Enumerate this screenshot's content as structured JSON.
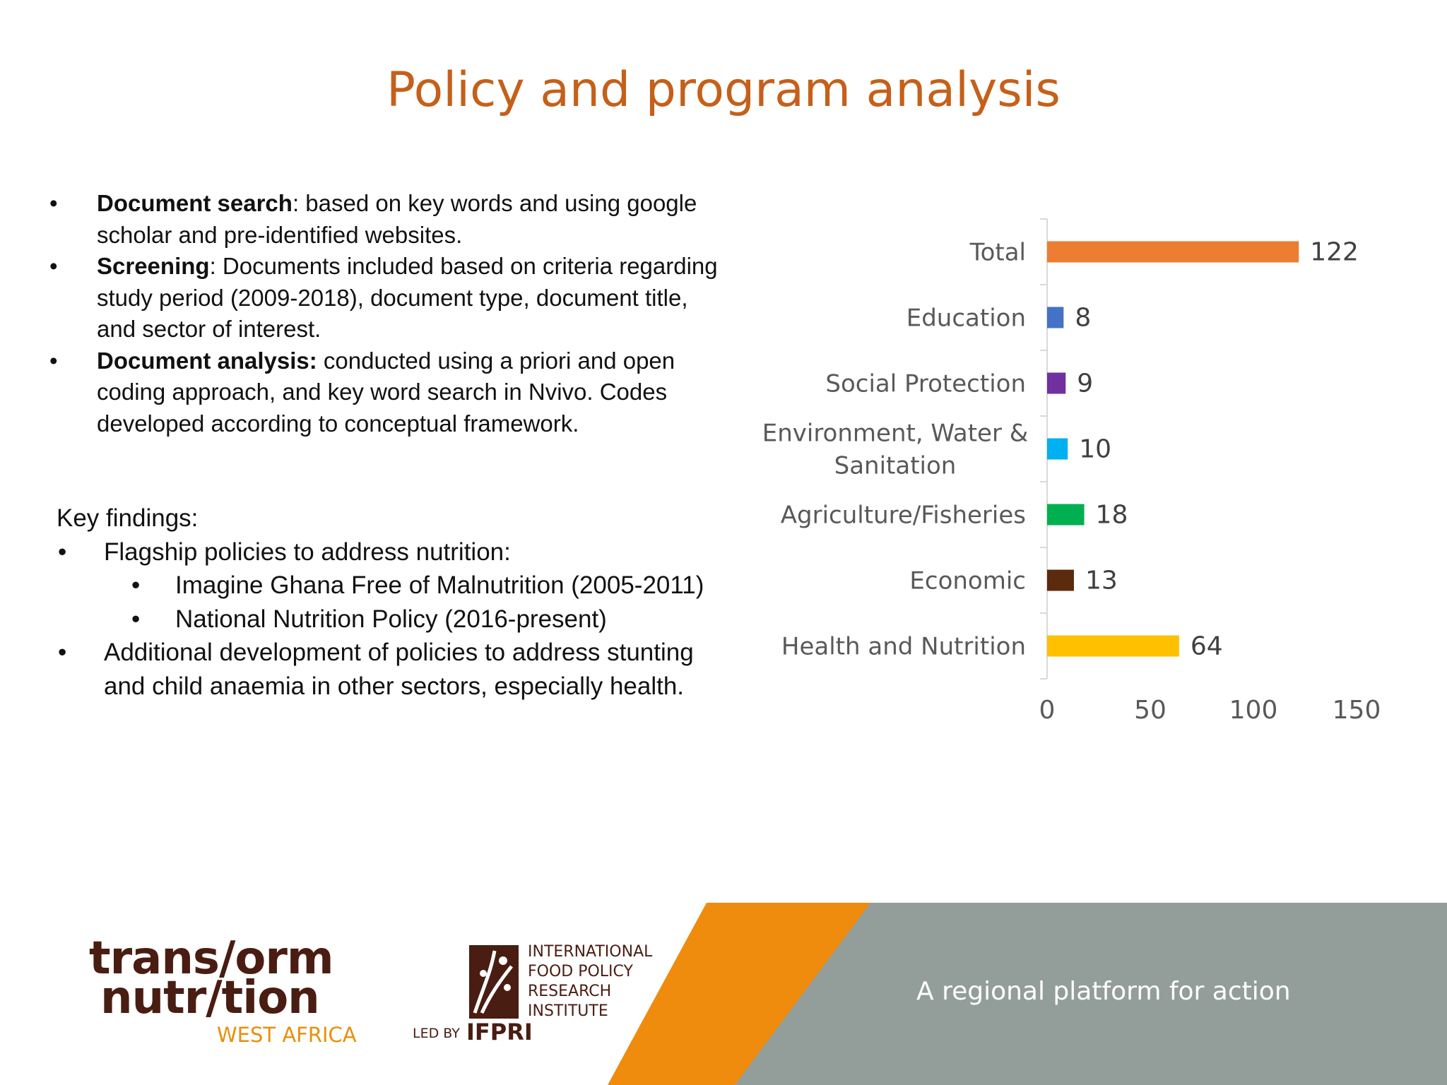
{
  "slide": {
    "title": "Policy and program analysis"
  },
  "methods": [
    {
      "bullet": "•",
      "label": "Document search",
      "text": ": based on key words and using google scholar and pre-identified websites."
    },
    {
      "bullet": "•",
      "label": "Screening",
      "text": ": Documents included based on criteria regarding study period (2009-2018), document type, document title, and sector of interest."
    },
    {
      "bullet": "•",
      "label": "Document analysis:",
      "text": " conducted using a priori and open coding approach, and key word search in Nvivo. Codes developed according to conceptual framework."
    }
  ],
  "findings": {
    "heading": "Key findings:",
    "items": [
      {
        "bullet": "•",
        "text": "Flagship policies to address nutrition:",
        "level": 1
      },
      {
        "bullet": "•",
        "text": "Imagine Ghana Free of Malnutrition (2005-2011)",
        "level": 2
      },
      {
        "bullet": "•",
        "text": "National Nutrition Policy (2016-present)",
        "level": 2
      },
      {
        "bullet": "•",
        "text": "Additional development of policies to address stunting and child anaemia in other sectors, especially health.",
        "level": 1
      }
    ]
  },
  "chart_data": {
    "type": "bar",
    "orientation": "horizontal",
    "categories": [
      "Total",
      "Education",
      "Social Protection",
      "Environment, Water & Sanitation",
      "Agriculture/Fisheries",
      "Economic",
      "Health and Nutrition"
    ],
    "category_lines": [
      [
        "Total"
      ],
      [
        "Education"
      ],
      [
        "Social Protection"
      ],
      [
        "Environment, Water &",
        "Sanitation"
      ],
      [
        "Agriculture/Fisheries"
      ],
      [
        "Economic"
      ],
      [
        "Health and Nutrition"
      ]
    ],
    "values": [
      122,
      8,
      9,
      10,
      18,
      13,
      64
    ],
    "value_labels": [
      "122",
      "8",
      "9",
      "10",
      "18",
      "13",
      "64"
    ],
    "colors": [
      "#ed7d31",
      "#4472c4",
      "#7030a0",
      "#00b0f0",
      "#00b050",
      "#5c2a0c",
      "#ffc000"
    ],
    "xlim": [
      0,
      150
    ],
    "xticks": [
      0,
      50,
      100,
      150
    ],
    "xtick_labels": [
      "0",
      "50",
      "100",
      "150"
    ],
    "grid": false,
    "legend": "none"
  },
  "footer": {
    "tagline": "A regional platform for action",
    "tn_logo": {
      "line1": "trans/orm",
      "line2": "nutr/tion",
      "sub": "WEST AFRICA"
    },
    "ifpri_logo": {
      "name_lines": [
        "International",
        "Food Policy",
        "Research",
        "Institute"
      ],
      "led_by": "LED BY",
      "mark": "IFPRI"
    },
    "colors": {
      "orange": "#ef8b0d",
      "gray": "#939e9a",
      "brown": "#4a1d12"
    }
  }
}
